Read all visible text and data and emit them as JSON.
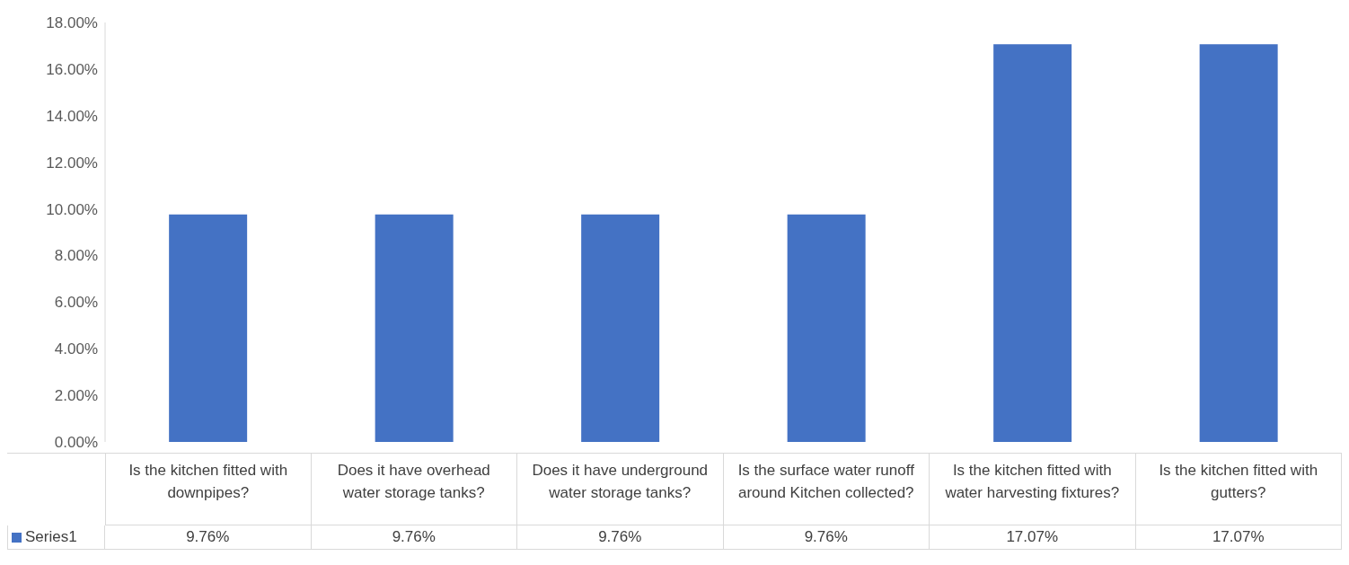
{
  "chart_data": {
    "type": "bar",
    "categories": [
      "Is the kitchen fitted with downpipes?",
      "Does it have overhead water storage tanks?",
      "Does it have underground water storage tanks?",
      "Is the surface water runoff around Kitchen collected?",
      "Is the kitchen fitted with water harvesting fixtures?",
      "Is the kitchen fitted with gutters?"
    ],
    "series": [
      {
        "name": "Series1",
        "color": "#4472c4",
        "values": [
          9.76,
          9.76,
          9.76,
          9.76,
          17.07,
          17.07
        ],
        "value_labels": [
          "9.76%",
          "9.76%",
          "9.76%",
          "9.76%",
          "17.07%",
          "17.07%"
        ]
      }
    ],
    "ylim": [
      0,
      18
    ],
    "yticks": [
      {
        "value": 0,
        "label": "0.00%"
      },
      {
        "value": 2,
        "label": "2.00%"
      },
      {
        "value": 4,
        "label": "4.00%"
      },
      {
        "value": 6,
        "label": "6.00%"
      },
      {
        "value": 8,
        "label": "8.00%"
      },
      {
        "value": 10,
        "label": "10.00%"
      },
      {
        "value": 12,
        "label": "12.00%"
      },
      {
        "value": 14,
        "label": "14.00%"
      },
      {
        "value": 16,
        "label": "16.00%"
      },
      {
        "value": 18,
        "label": "18.00%"
      }
    ],
    "grid": false,
    "legend": "bottom left"
  }
}
